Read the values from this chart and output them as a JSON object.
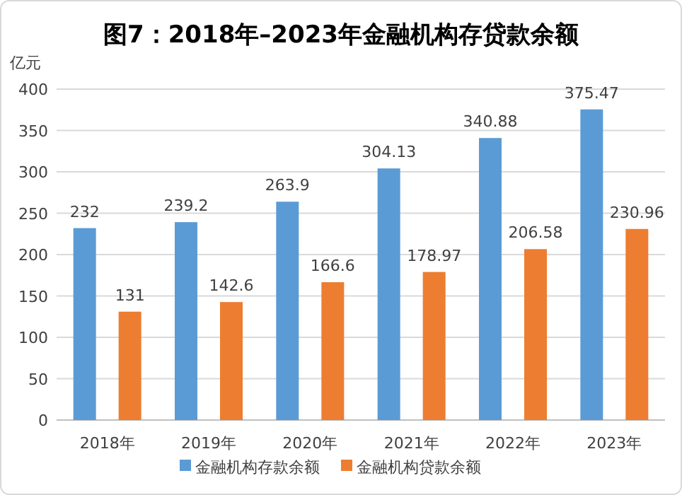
{
  "chart_data": {
    "type": "bar",
    "title": "图7：2018年–2023年金融机构存贷款余额",
    "ylabel": "亿元",
    "categories": [
      "2018年",
      "2019年",
      "2020年",
      "2021年",
      "2022年",
      "2023年"
    ],
    "series": [
      {
        "name": "金融机构存款余额",
        "color": "#5b9bd5",
        "values": [
          232,
          239.2,
          263.9,
          304.13,
          340.88,
          375.47
        ]
      },
      {
        "name": "金融机构贷款余额",
        "color": "#ed7d31",
        "values": [
          131,
          142.6,
          166.6,
          178.97,
          206.58,
          230.96
        ]
      }
    ],
    "ylim": [
      0,
      400
    ],
    "yticks": [
      0,
      50,
      100,
      150,
      200,
      250,
      300,
      350,
      400
    ],
    "grid": "y",
    "data_labels": true,
    "legend": "bottom"
  }
}
